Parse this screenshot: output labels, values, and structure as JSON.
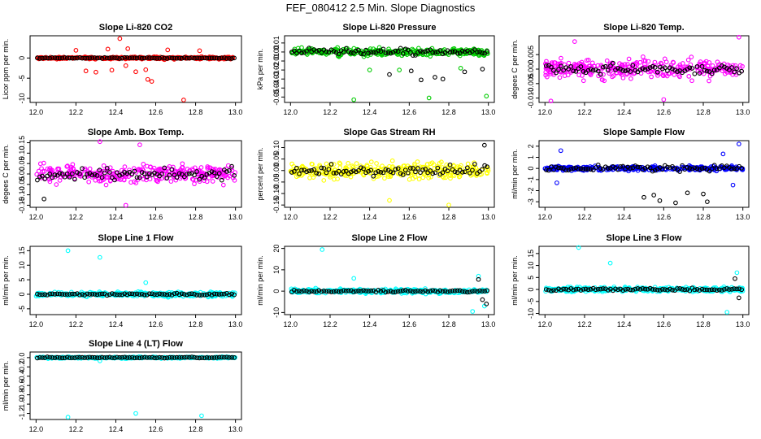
{
  "figure": {
    "title": "FEF_080412  2.5 Min. Slope Diagnostics",
    "overlay_color": "#000000"
  },
  "chart_data": [
    {
      "type": "scatter",
      "title": "Slope Li-820 CO2",
      "ylabel": "Licor ppm per min.",
      "color": "#ff0000",
      "xlim": [
        11.97,
        13.03
      ],
      "ylim": [
        -11,
        5.5
      ],
      "xticks": [
        12.0,
        12.2,
        12.4,
        12.6,
        12.8,
        13.0
      ],
      "xtick_labels": [
        "12.0",
        "12.2",
        "12.4",
        "12.6",
        "12.8",
        "13.0"
      ],
      "yticks": [
        -10,
        -5,
        0
      ],
      "ytick_labels": [
        "-10",
        "-5",
        "0"
      ],
      "base": 0,
      "noise": 0.5,
      "black_noise": 0.25,
      "outliers": [
        [
          12.25,
          -3.2
        ],
        [
          12.3,
          -3.5
        ],
        [
          12.36,
          2.2
        ],
        [
          12.38,
          -3.0
        ],
        [
          12.42,
          4.8
        ],
        [
          12.46,
          2.3
        ],
        [
          12.5,
          -3.4
        ],
        [
          12.55,
          -2.9
        ],
        [
          12.56,
          -5.3
        ],
        [
          12.58,
          -5.8
        ],
        [
          12.66,
          2.0
        ],
        [
          12.74,
          -10.4
        ],
        [
          12.82,
          1.8
        ],
        [
          12.2,
          1.9
        ],
        [
          12.45,
          -1.9
        ]
      ],
      "black_outliers": []
    },
    {
      "type": "scatter",
      "title": "Slope Li-820 Pressure",
      "ylabel": "kPa per min.",
      "color": "#00cc00",
      "xlim": [
        11.97,
        13.03
      ],
      "ylim": [
        -0.056,
        0.018
      ],
      "xticks": [
        12.0,
        12.2,
        12.4,
        12.6,
        12.8,
        13.0
      ],
      "xtick_labels": [
        "12.0",
        "12.2",
        "12.4",
        "12.6",
        "12.8",
        "13.0"
      ],
      "yticks": [
        -0.05,
        -0.04,
        -0.03,
        -0.02,
        -0.01,
        0.0,
        0.01
      ],
      "ytick_labels": [
        "-0.05",
        "-0.04",
        "-0.03",
        "-0.02",
        "-0.01",
        "0.00",
        "0.01"
      ],
      "base": 0,
      "noise": 0.007,
      "black_noise": 0.006,
      "outliers": [
        [
          12.32,
          -0.053
        ],
        [
          12.7,
          -0.051
        ],
        [
          12.99,
          -0.049
        ],
        [
          12.4,
          -0.02
        ],
        [
          12.55,
          -0.02
        ],
        [
          12.86,
          -0.018
        ]
      ],
      "black_outliers": [
        [
          12.5,
          -0.025
        ],
        [
          12.61,
          -0.021
        ],
        [
          12.66,
          -0.031
        ],
        [
          12.73,
          -0.028
        ],
        [
          12.77,
          -0.03
        ],
        [
          12.88,
          -0.022
        ],
        [
          12.97,
          -0.019
        ]
      ]
    },
    {
      "type": "scatter",
      "title": "Slope Li-820 Temp.",
      "ylabel": "degees C per min.",
      "color": "#ff00ff",
      "xlim": [
        11.97,
        13.03
      ],
      "ylim": [
        -0.0115,
        0.0115
      ],
      "xticks": [
        12.0,
        12.2,
        12.4,
        12.6,
        12.8,
        13.0
      ],
      "xtick_labels": [
        "12.0",
        "12.2",
        "12.4",
        "12.6",
        "12.8",
        "13.0"
      ],
      "yticks": [
        -0.01,
        -0.005,
        0.0,
        0.005
      ],
      "ytick_labels": [
        "-0.010",
        "-0.005",
        "0.000",
        "0.005"
      ],
      "base": 0,
      "noise": 0.006,
      "black_noise": 0.003,
      "outliers": [
        [
          12.03,
          -0.011
        ],
        [
          12.98,
          0.011
        ],
        [
          12.15,
          0.0095
        ],
        [
          12.6,
          -0.0105
        ]
      ],
      "black_outliers": []
    },
    {
      "type": "scatter",
      "title": "Slope Amb. Box Temp.",
      "ylabel": "degees C per min.",
      "color": "#ff00ff",
      "xlim": [
        11.97,
        13.03
      ],
      "ylim": [
        -0.16,
        0.16
      ],
      "xticks": [
        12.0,
        12.2,
        12.4,
        12.6,
        12.8,
        13.0
      ],
      "xtick_labels": [
        "12.0",
        "12.2",
        "12.4",
        "12.6",
        "12.8",
        "13.0"
      ],
      "yticks": [
        -0.15,
        -0.1,
        -0.05,
        0.0,
        0.05,
        0.1,
        0.15
      ],
      "ytick_labels": [
        "-0.15",
        "-0.10",
        "-0.05",
        "0.00",
        "0.05",
        "0.10",
        "0.15"
      ],
      "base": 0,
      "noise": 0.08,
      "black_noise": 0.05,
      "outliers": [
        [
          12.32,
          0.155
        ],
        [
          12.45,
          -0.15
        ],
        [
          12.52,
          0.14
        ]
      ],
      "black_outliers": [
        [
          12.04,
          -0.12
        ]
      ]
    },
    {
      "type": "scatter",
      "title": "Slope Gas Stream RH",
      "ylabel": "percent per min.",
      "color": "#ffff00",
      "xlim": [
        11.97,
        13.03
      ],
      "ylim": [
        -0.16,
        0.13
      ],
      "xticks": [
        12.0,
        12.2,
        12.4,
        12.6,
        12.8,
        13.0
      ],
      "xtick_labels": [
        "12.0",
        "12.2",
        "12.4",
        "12.6",
        "12.8",
        "13.0"
      ],
      "yticks": [
        -0.15,
        -0.1,
        -0.05,
        0.0,
        0.05,
        0.1
      ],
      "ytick_labels": [
        "-0.15",
        "-0.10",
        "-0.05",
        "0.00",
        "0.05",
        "0.10"
      ],
      "base": 0,
      "noise": 0.06,
      "black_noise": 0.04,
      "outliers": [
        [
          12.8,
          -0.15
        ],
        [
          12.5,
          -0.13
        ]
      ],
      "black_outliers": [
        [
          12.98,
          0.11
        ]
      ]
    },
    {
      "type": "scatter",
      "title": "Slope Sample Flow",
      "ylabel": "ml/min per min.",
      "color": "#0000ff",
      "xlim": [
        11.97,
        13.03
      ],
      "ylim": [
        -3.5,
        2.5
      ],
      "xticks": [
        12.0,
        12.2,
        12.4,
        12.6,
        12.8,
        13.0
      ],
      "xtick_labels": [
        "12.0",
        "12.2",
        "12.4",
        "12.6",
        "12.8",
        "13.0"
      ],
      "yticks": [
        -3,
        -2,
        -1,
        0,
        1,
        2
      ],
      "ytick_labels": [
        "-3",
        "-2",
        "-1",
        "0",
        "1",
        "2"
      ],
      "base": 0,
      "noise": 0.35,
      "black_noise": 0.5,
      "outliers": [
        [
          12.08,
          1.6
        ],
        [
          12.06,
          -1.3
        ],
        [
          12.9,
          1.3
        ],
        [
          12.98,
          2.2
        ],
        [
          12.95,
          -1.5
        ]
      ],
      "black_outliers": [
        [
          12.5,
          -2.6
        ],
        [
          12.55,
          -2.4
        ],
        [
          12.58,
          -2.9
        ],
        [
          12.66,
          -3.1
        ],
        [
          12.72,
          -2.2
        ],
        [
          12.8,
          -2.3
        ],
        [
          12.82,
          -3.0
        ]
      ]
    },
    {
      "type": "scatter",
      "title": "Slope Line 1 Flow",
      "ylabel": "ml/min per min.",
      "color": "#00ffff",
      "xlim": [
        11.97,
        13.03
      ],
      "ylim": [
        -7,
        16.5
      ],
      "xticks": [
        12.0,
        12.2,
        12.4,
        12.6,
        12.8,
        13.0
      ],
      "xtick_labels": [
        "12.0",
        "12.2",
        "12.4",
        "12.6",
        "12.8",
        "13.0"
      ],
      "yticks": [
        -5,
        0,
        5,
        10,
        15
      ],
      "ytick_labels": [
        "-5",
        "0",
        "5",
        "10",
        "15"
      ],
      "base": 0,
      "noise": 1.4,
      "black_noise": 0.6,
      "outliers": [
        [
          12.16,
          15
        ],
        [
          12.32,
          12.7
        ],
        [
          12.55,
          4
        ]
      ],
      "black_outliers": []
    },
    {
      "type": "scatter",
      "title": "Slope Line 2 Flow",
      "ylabel": "ml/min per min.",
      "color": "#00ffff",
      "xlim": [
        11.97,
        13.03
      ],
      "ylim": [
        -11,
        21
      ],
      "xticks": [
        12.0,
        12.2,
        12.4,
        12.6,
        12.8,
        13.0
      ],
      "xtick_labels": [
        "12.0",
        "12.2",
        "12.4",
        "12.6",
        "12.8",
        "13.0"
      ],
      "yticks": [
        -10,
        0,
        10,
        20
      ],
      "ytick_labels": [
        "-10",
        "0",
        "10",
        "20"
      ],
      "base": 0,
      "noise": 1.8,
      "black_noise": 1.0,
      "outliers": [
        [
          12.16,
          19.5
        ],
        [
          12.32,
          6
        ],
        [
          12.92,
          -9.5
        ],
        [
          12.95,
          7
        ],
        [
          12.98,
          -7
        ]
      ],
      "black_outliers": [
        [
          12.95,
          5.5
        ],
        [
          12.97,
          -4
        ],
        [
          12.99,
          -6
        ]
      ]
    },
    {
      "type": "scatter",
      "title": "Slope Line 3 Flow",
      "ylabel": "ml/min per min.",
      "color": "#00ffff",
      "xlim": [
        11.97,
        13.03
      ],
      "ylim": [
        -10.5,
        18
      ],
      "xticks": [
        12.0,
        12.2,
        12.4,
        12.6,
        12.8,
        13.0
      ],
      "xtick_labels": [
        "12.0",
        "12.2",
        "12.4",
        "12.6",
        "12.8",
        "13.0"
      ],
      "yticks": [
        -10,
        -5,
        0,
        5,
        10,
        15
      ],
      "ytick_labels": [
        "-10",
        "-5",
        "0",
        "5",
        "10",
        "15"
      ],
      "base": 0,
      "noise": 1.8,
      "black_noise": 1.0,
      "outliers": [
        [
          12.17,
          17.5
        ],
        [
          12.33,
          11
        ],
        [
          12.92,
          -9.5
        ],
        [
          12.97,
          7
        ]
      ],
      "black_outliers": [
        [
          12.96,
          4.5
        ],
        [
          12.98,
          -3.5
        ]
      ]
    },
    {
      "type": "scatter",
      "title": "Slope Line 4 (LT) Flow",
      "ylabel": "ml/min per min.",
      "color": "#00ffff",
      "xlim": [
        11.97,
        13.03
      ],
      "ylim": [
        -1.33,
        0.12
      ],
      "xticks": [
        12.0,
        12.2,
        12.4,
        12.6,
        12.8,
        13.0
      ],
      "xtick_labels": [
        "12.0",
        "12.2",
        "12.4",
        "12.6",
        "12.8",
        "13.0"
      ],
      "yticks": [
        -1.2,
        -1.0,
        -0.8,
        -0.6,
        -0.4,
        -0.2,
        0.0
      ],
      "ytick_labels": [
        "-1.2",
        "-1.0",
        "-0.8",
        "-0.6",
        "-0.4",
        "-0.2",
        "0.0"
      ],
      "base": 0.0,
      "noise": 0.03,
      "black_noise": 0.02,
      "outliers": [
        [
          12.16,
          -1.28
        ],
        [
          12.5,
          -1.2
        ],
        [
          12.83,
          -1.25
        ],
        [
          12.32,
          -0.07
        ]
      ],
      "black_outliers": []
    }
  ]
}
